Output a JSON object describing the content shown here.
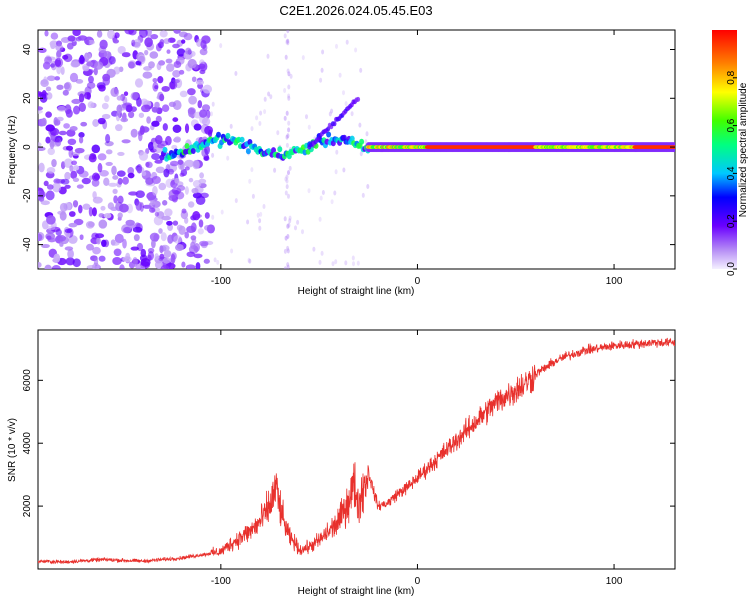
{
  "title": "C2E1.2026.024.05.45.E03",
  "chart_data": [
    {
      "type": "heatmap",
      "xlabel": "Height of straight line (km)",
      "ylabel": "Frequency (Hz)",
      "xlim": [
        -193,
        131
      ],
      "ylim": [
        -50,
        48
      ],
      "xticks": [
        -100,
        0,
        100
      ],
      "yticks": [
        -40,
        -20,
        0,
        20,
        40
      ],
      "colorbar": {
        "label": "Normalized spectral amplitude",
        "range": [
          0,
          1
        ],
        "ticks": [
          0.0,
          0.2,
          0.4,
          0.6,
          0.8
        ]
      },
      "features": [
        {
          "x_range": [
            -193,
            -105
          ],
          "description": "diffuse low-amplitude noise across all frequencies"
        },
        {
          "x_range": [
            -105,
            -25
          ],
          "freq_hz": 0,
          "amplitude_range": [
            0.2,
            0.6
          ]
        },
        {
          "x_range": [
            -40,
            -30
          ],
          "freq_hz_range": [
            15,
            25
          ],
          "amplitude": 0.2
        },
        {
          "x_range": [
            -25,
            131
          ],
          "freq_hz": 0,
          "amplitude_range": [
            0.5,
            1.0
          ]
        }
      ]
    },
    {
      "type": "line",
      "xlabel": "Height of straight line (km)",
      "ylabel": "SNR (10 * v/v)",
      "xlim": [
        -193,
        131
      ],
      "ylim": [
        0,
        7600
      ],
      "xticks": [
        -100,
        0,
        100
      ],
      "yticks": [
        2000,
        4000,
        6000
      ],
      "series": [
        {
          "name": "SNR",
          "color": "#e8302c",
          "x": [
            -193,
            -180,
            -160,
            -140,
            -120,
            -110,
            -100,
            -95,
            -90,
            -85,
            -80,
            -75,
            -72,
            -70,
            -68,
            -65,
            -62,
            -60,
            -55,
            -50,
            -45,
            -40,
            -35,
            -32,
            -30,
            -28,
            -25,
            -22,
            -20,
            -15,
            -10,
            -5,
            0,
            5,
            10,
            15,
            20,
            25,
            30,
            35,
            40,
            45,
            50,
            55,
            60,
            65,
            70,
            75,
            80,
            85,
            90,
            95,
            100,
            110,
            120,
            131
          ],
          "y": [
            250,
            220,
            300,
            250,
            350,
            450,
            550,
            800,
            1000,
            1200,
            1500,
            2000,
            2600,
            2000,
            1500,
            1000,
            800,
            600,
            700,
            900,
            1200,
            1500,
            2200,
            2700,
            2000,
            2500,
            3100,
            2400,
            2000,
            2100,
            2400,
            2600,
            2900,
            3200,
            3500,
            3800,
            4100,
            4400,
            4700,
            5000,
            5300,
            5500,
            5700,
            5900,
            6200,
            6400,
            6600,
            6750,
            6850,
            6950,
            7000,
            7050,
            7100,
            7150,
            7200,
            7200
          ]
        }
      ]
    }
  ]
}
